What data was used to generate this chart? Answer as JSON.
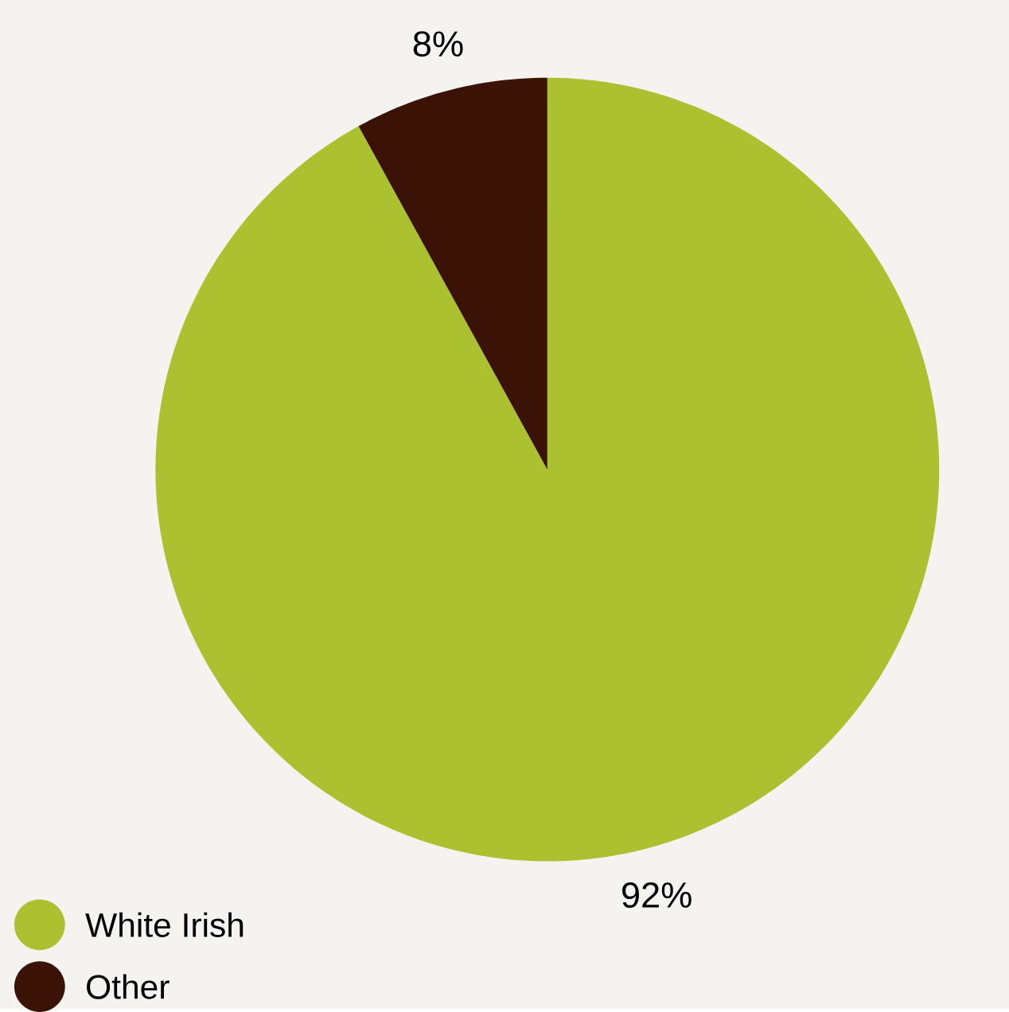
{
  "chart_data": {
    "type": "pie",
    "categories": [
      "White Irish",
      "Other"
    ],
    "values": [
      92,
      8
    ],
    "colors": [
      "#acc12f",
      "#3b1306"
    ],
    "value_labels": [
      "92%",
      "8%"
    ],
    "legend": "bottom left"
  }
}
